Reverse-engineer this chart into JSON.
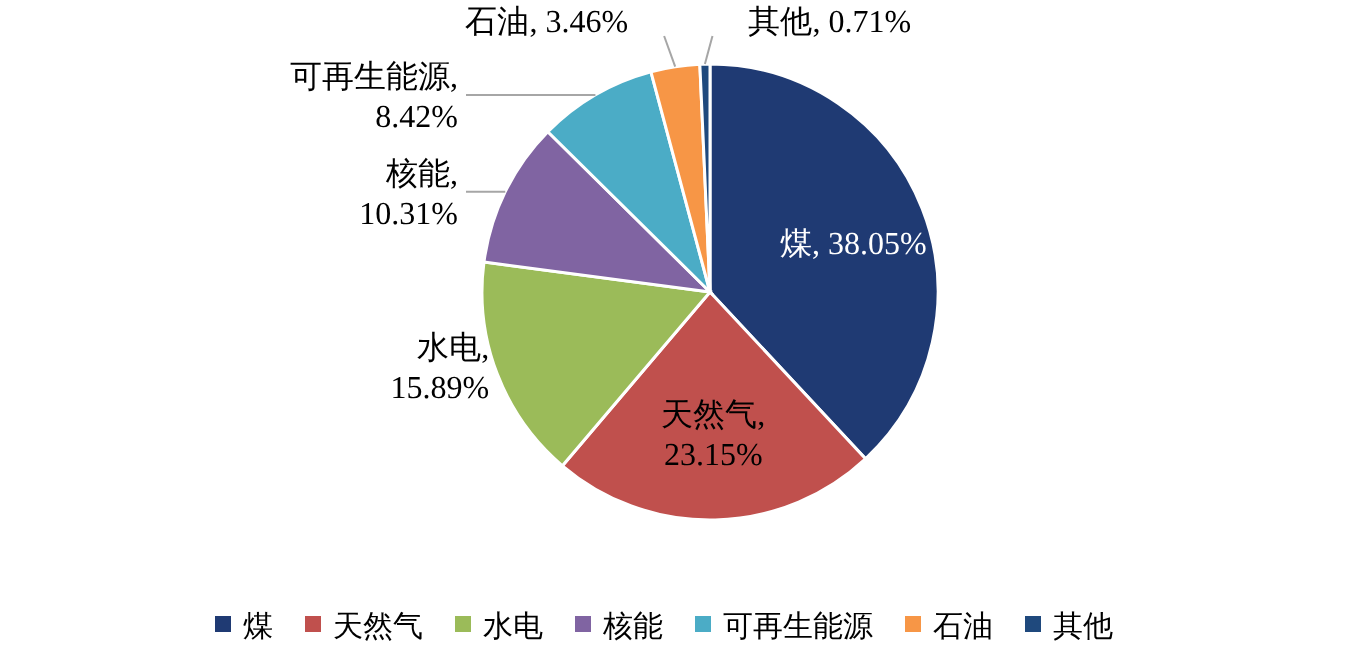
{
  "chart_data": {
    "type": "pie",
    "categories": [
      "煤",
      "天然气",
      "水电",
      "核能",
      "可再生能源",
      "石油",
      "其他"
    ],
    "values": [
      38.05,
      23.15,
      15.89,
      10.31,
      8.42,
      3.46,
      0.71
    ],
    "value_labels": [
      ", 38.05%",
      ", 23.15%",
      ", 15.89%",
      ", 10.31%",
      ", 8.42%",
      ", 3.46%",
      ", 0.71%"
    ],
    "colors": [
      "#1f3a73",
      "#c0504d",
      "#9bbb59",
      "#8064a2",
      "#4bacc6",
      "#f79646",
      "#1f497d"
    ],
    "legend": "bottom"
  }
}
